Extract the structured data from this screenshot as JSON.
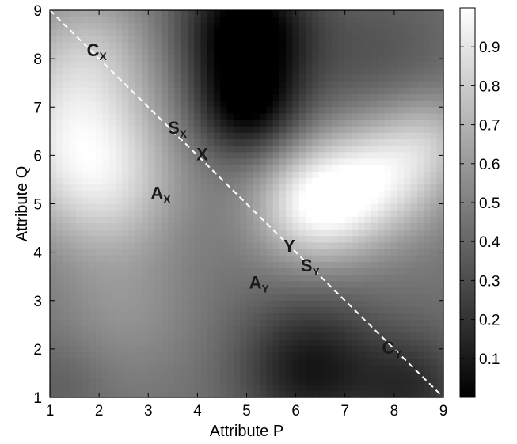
{
  "chart_data": {
    "type": "heatmap",
    "title": "",
    "xlabel": "Attribute P",
    "ylabel": "Attribute Q",
    "xlim": [
      1,
      9
    ],
    "ylim": [
      1,
      9
    ],
    "xticks": [
      "1",
      "2",
      "3",
      "4",
      "5",
      "6",
      "7",
      "8",
      "9"
    ],
    "yticks": [
      "1",
      "2",
      "3",
      "4",
      "5",
      "6",
      "7",
      "8",
      "9"
    ],
    "colorbar": {
      "range": [
        0,
        1
      ],
      "ticks": [
        "0.1",
        "0.2",
        "0.3",
        "0.4",
        "0.5",
        "0.6",
        "0.7",
        "0.8",
        "0.9"
      ],
      "colormap": "gray"
    },
    "grid": false,
    "blobs": [
      {
        "x": 1.5,
        "y": 6.5,
        "sigma": 1.2,
        "amp": 0.42
      },
      {
        "x": 2.2,
        "y": 5.2,
        "sigma": 1.0,
        "amp": 0.25
      },
      {
        "x": 1.8,
        "y": 8.3,
        "sigma": 0.9,
        "amp": 0.2
      },
      {
        "x": 6.4,
        "y": 5.0,
        "sigma": 0.85,
        "amp": 0.52
      },
      {
        "x": 7.8,
        "y": 5.6,
        "sigma": 0.9,
        "amp": 0.42
      },
      {
        "x": 8.8,
        "y": 6.4,
        "sigma": 0.7,
        "amp": 0.2
      },
      {
        "x": 5.0,
        "y": 8.6,
        "sigma": 0.9,
        "amp": -0.52
      },
      {
        "x": 5.0,
        "y": 7.0,
        "sigma": 0.75,
        "amp": -0.42
      },
      {
        "x": 6.3,
        "y": 1.6,
        "sigma": 1.0,
        "amp": -0.36
      },
      {
        "x": 8.4,
        "y": 1.2,
        "sigma": 0.8,
        "amp": -0.25
      },
      {
        "x": 2.5,
        "y": 2.8,
        "sigma": 1.0,
        "amp": 0.12
      },
      {
        "x": 7.6,
        "y": 8.0,
        "sigma": 1.1,
        "amp": -0.12
      },
      {
        "x": 1.2,
        "y": 1.3,
        "sigma": 0.7,
        "amp": -0.08
      }
    ],
    "base_value": 0.45,
    "diagonal_line": {
      "from": [
        1,
        9
      ],
      "to": [
        9,
        1
      ],
      "style": "dashed",
      "color": "#ffffff"
    },
    "annotations": [
      {
        "text": "C",
        "sub": "X",
        "x": 1.75,
        "y": 8.05
      },
      {
        "text": "S",
        "sub": "X",
        "x": 3.4,
        "y": 6.45
      },
      {
        "text": "X",
        "sub": "",
        "x": 3.98,
        "y": 5.9
      },
      {
        "text": "A",
        "sub": "X",
        "x": 3.05,
        "y": 5.1
      },
      {
        "text": "Y",
        "sub": "",
        "x": 5.75,
        "y": 4.0
      },
      {
        "text": "S",
        "sub": "Y",
        "x": 6.1,
        "y": 3.6
      },
      {
        "text": "A",
        "sub": "Y",
        "x": 5.05,
        "y": 3.25
      },
      {
        "text": "C",
        "sub": "Y",
        "x": 7.75,
        "y": 1.9
      }
    ]
  }
}
